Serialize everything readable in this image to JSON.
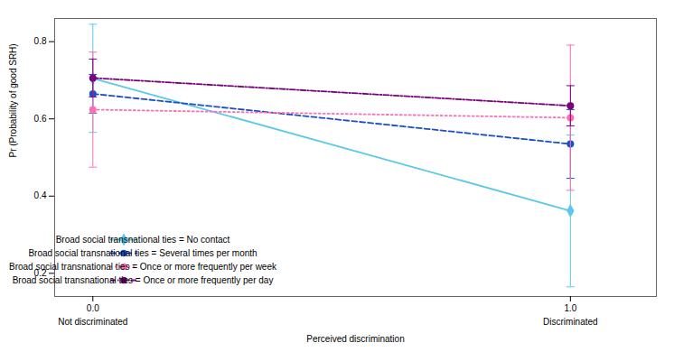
{
  "chart_data": {
    "type": "line",
    "x": [
      0,
      1
    ],
    "xlabel": "Perceived discrimination",
    "ylabel": "Pr (Probability of good SRH)",
    "xlim": [
      -0.08,
      1.18
    ],
    "xticks": [
      0,
      1
    ],
    "ylim": [
      0.14,
      0.86
    ],
    "yticks": [
      0.2,
      0.4,
      0.6,
      0.8
    ],
    "annotations": [
      {
        "x": 0,
        "text": "Not discriminated"
      },
      {
        "x": 1,
        "text": "Discriminated"
      }
    ],
    "series": [
      {
        "name": "Broad social transnational ties = No contact",
        "color": "#5BC8E8",
        "marker": "diamond",
        "line_style": "solid",
        "values": [
          0.705,
          0.362
        ],
        "y_lower": [
          0.565,
          0.165
        ],
        "y_upper": [
          0.845,
          0.558
        ]
      },
      {
        "name": "Broad social transnational ties = Several times per month",
        "color": "#1A4FC8",
        "marker": "circle",
        "line_style": "dashed",
        "values": [
          0.665,
          0.535
        ],
        "y_lower": [
          0.615,
          0.446
        ],
        "y_upper": [
          0.715,
          0.624
        ]
      },
      {
        "name": "Broad social transnational ties = Once or more frequently per week",
        "color": "#FF6EB4",
        "marker": "circle",
        "line_style": "dotted",
        "values": [
          0.624,
          0.603
        ],
        "y_lower": [
          0.475,
          0.415
        ],
        "y_upper": [
          0.773,
          0.791
        ]
      },
      {
        "name": "Broad social transnational ties = Once or more frequently per day",
        "color": "#7B0080",
        "marker": "circle",
        "line_style": "dashdot",
        "values": [
          0.706,
          0.634
        ],
        "y_lower": [
          0.657,
          0.582
        ],
        "y_upper": [
          0.755,
          0.686
        ]
      }
    ],
    "legend": "lower left",
    "grid": false
  }
}
